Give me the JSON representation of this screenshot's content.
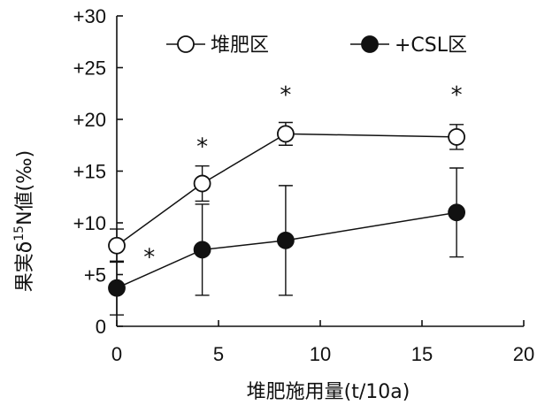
{
  "chart_data": {
    "type": "line",
    "title": "",
    "xlabel": "堆肥施用量(t/10a)",
    "ylabel_parts": {
      "prefix": "果実δ",
      "sup": "15",
      "suffix": "N値(‰)"
    },
    "xlim": [
      0,
      20
    ],
    "ylim": [
      0,
      30
    ],
    "x_ticks": [
      0,
      5,
      10,
      15,
      20
    ],
    "x_tick_labels": [
      "0",
      "5",
      "10",
      "15",
      "20"
    ],
    "y_ticks": [
      0,
      5,
      10,
      15,
      20,
      25,
      30
    ],
    "y_tick_labels": [
      "0",
      "+5",
      "+10",
      "+15",
      "+20",
      "+25",
      "+30"
    ],
    "grid": false,
    "legend_position": "top",
    "series": [
      {
        "name": "堆肥区",
        "marker": "open-circle",
        "color": "#111111",
        "x": [
          0,
          4.2,
          8.3,
          16.7
        ],
        "y": [
          7.8,
          13.8,
          18.6,
          18.3
        ],
        "err": [
          1.6,
          1.7,
          1.1,
          1.2
        ]
      },
      {
        "name": "+CSL区",
        "marker": "filled-circle",
        "color": "#111111",
        "x": [
          0,
          4.2,
          8.3,
          16.7
        ],
        "y": [
          3.7,
          7.4,
          8.3,
          11.0
        ],
        "err": [
          2.6,
          4.4,
          5.3,
          4.3
        ]
      }
    ],
    "annotations": [
      {
        "text": "*",
        "x": 1.6,
        "y": 6.8
      },
      {
        "text": "*",
        "x": 4.2,
        "y": 17.5
      },
      {
        "text": "*",
        "x": 8.3,
        "y": 22.5
      },
      {
        "text": "*",
        "x": 16.7,
        "y": 22.5
      }
    ]
  }
}
